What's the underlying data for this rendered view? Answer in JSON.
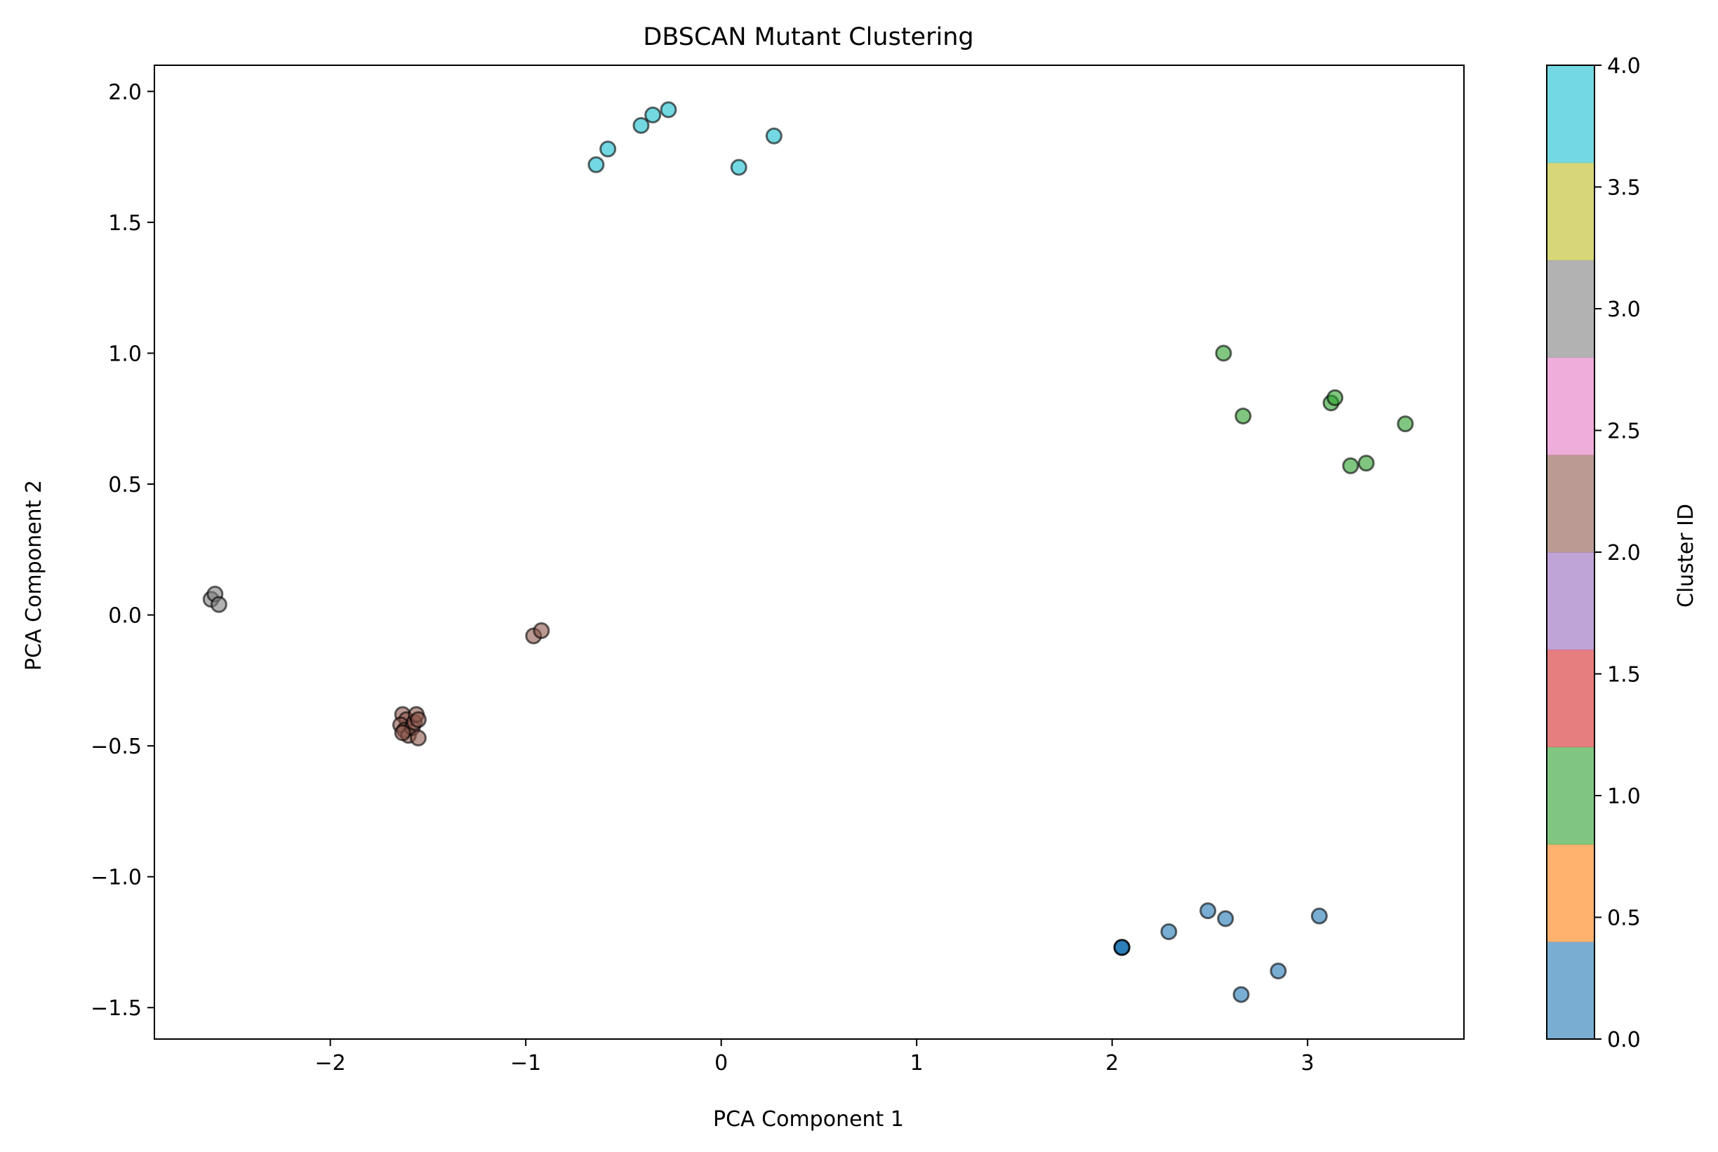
{
  "chart_data": {
    "type": "scatter",
    "title": "DBSCAN Mutant Clustering",
    "xlabel": "PCA Component 1",
    "ylabel": "PCA Component 2",
    "xlim": [
      -2.9,
      3.8
    ],
    "ylim": [
      -1.62,
      2.1
    ],
    "xticks": [
      -2,
      -1,
      0,
      1,
      2,
      3
    ],
    "xtick_labels": [
      "−2",
      "−1",
      "0",
      "1",
      "2",
      "3"
    ],
    "yticks": [
      -1.5,
      -1.0,
      -0.5,
      0.0,
      0.5,
      1.0,
      1.5,
      2.0
    ],
    "ytick_labels": [
      "−1.5",
      "−1.0",
      "−0.5",
      "0.0",
      "0.5",
      "1.0",
      "1.5",
      "2.0"
    ],
    "grid": false,
    "marker_alpha": 0.6,
    "marker_edge_color": "#000000",
    "colorbar": {
      "label": "Cluster ID",
      "range": [
        0,
        4
      ],
      "ticks": [
        0,
        0.5,
        1,
        1.5,
        2,
        2.5,
        3,
        3.5,
        4
      ],
      "tick_labels": [
        "0.0",
        "0.5",
        "1.0",
        "1.5",
        "2.0",
        "2.5",
        "3.0",
        "3.5",
        "4.0"
      ],
      "colors": [
        "#1f77b4",
        "#ff7f0e",
        "#2ca02c",
        "#d62728",
        "#9467bd",
        "#8c564b",
        "#e377c2",
        "#7f7f7f",
        "#bcbd22",
        "#17becf"
      ]
    },
    "series": [
      {
        "cluster": 0,
        "color": "#1f77b4",
        "points": [
          [
            2.05,
            -1.27
          ],
          [
            2.05,
            -1.27
          ],
          [
            2.05,
            -1.27
          ],
          [
            2.29,
            -1.21
          ],
          [
            2.49,
            -1.13
          ],
          [
            2.58,
            -1.16
          ],
          [
            2.66,
            -1.45
          ],
          [
            2.85,
            -1.36
          ],
          [
            3.06,
            -1.15
          ]
        ]
      },
      {
        "cluster": 1,
        "color": "#2ca02c",
        "points": [
          [
            2.57,
            1.0
          ],
          [
            2.67,
            0.76
          ],
          [
            3.12,
            0.81
          ],
          [
            3.14,
            0.83
          ],
          [
            3.22,
            0.57
          ],
          [
            3.3,
            0.58
          ],
          [
            3.5,
            0.73
          ]
        ]
      },
      {
        "cluster": 2,
        "color": "#8c564b",
        "points": [
          [
            -0.96,
            -0.08
          ],
          [
            -0.92,
            -0.06
          ],
          [
            -1.63,
            -0.38
          ],
          [
            -1.61,
            -0.4
          ],
          [
            -1.64,
            -0.42
          ],
          [
            -1.62,
            -0.44
          ],
          [
            -1.6,
            -0.46
          ],
          [
            -1.58,
            -0.43
          ],
          [
            -1.57,
            -0.41
          ],
          [
            -1.56,
            -0.38
          ],
          [
            -1.55,
            -0.47
          ],
          [
            -1.55,
            -0.4
          ],
          [
            -1.63,
            -0.45
          ]
        ]
      },
      {
        "cluster": 3,
        "color": "#7f7f7f",
        "points": [
          [
            -2.61,
            0.06
          ],
          [
            -2.59,
            0.08
          ],
          [
            -2.57,
            0.04
          ]
        ]
      },
      {
        "cluster": 4,
        "color": "#17becf",
        "points": [
          [
            -0.64,
            1.72
          ],
          [
            -0.58,
            1.78
          ],
          [
            -0.41,
            1.87
          ],
          [
            -0.35,
            1.91
          ],
          [
            -0.27,
            1.93
          ],
          [
            0.09,
            1.71
          ],
          [
            0.27,
            1.83
          ]
        ]
      }
    ]
  }
}
